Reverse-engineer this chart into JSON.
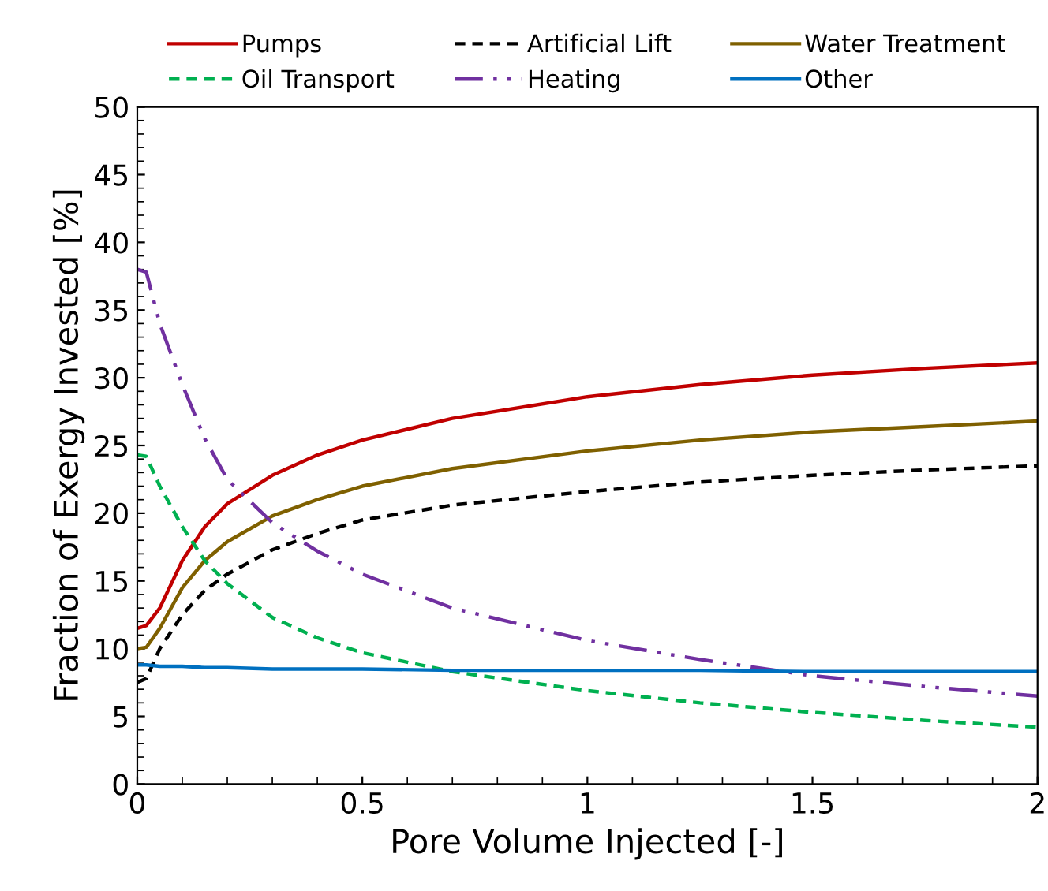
{
  "chart_data": {
    "type": "line",
    "xlabel": "Pore Volume Injected [-]",
    "ylabel": "Fraction of Exergy Invested [%]",
    "x": [
      0,
      0.02,
      0.05,
      0.1,
      0.15,
      0.2,
      0.3,
      0.4,
      0.5,
      0.7,
      1.0,
      1.25,
      1.5,
      1.75,
      2.0
    ],
    "series": [
      {
        "name": "Pumps",
        "color": "#c00000",
        "line_style": "solid",
        "values": [
          11.5,
          11.7,
          13,
          16.5,
          19,
          20.7,
          22.8,
          24.3,
          25.4,
          27,
          28.6,
          29.5,
          30.2,
          30.7,
          31.1
        ]
      },
      {
        "name": "Artificial Lift",
        "color": "#000000",
        "line_style": "dashed",
        "values": [
          7.5,
          7.8,
          10,
          12.5,
          14.3,
          15.5,
          17.3,
          18.5,
          19.5,
          20.6,
          21.6,
          22.3,
          22.8,
          23.2,
          23.5
        ]
      },
      {
        "name": "Water Treatment",
        "color": "#7f6000",
        "line_style": "solid",
        "values": [
          10,
          10.1,
          11.5,
          14.5,
          16.5,
          17.9,
          19.8,
          21,
          22,
          23.3,
          24.6,
          25.4,
          26,
          26.4,
          26.8
        ]
      },
      {
        "name": "Oil Transport",
        "color": "#00b050",
        "line_style": "dashed",
        "values": [
          24.3,
          24.2,
          22,
          19,
          16.5,
          14.8,
          12.3,
          10.8,
          9.7,
          8.3,
          6.9,
          6,
          5.3,
          4.7,
          4.2
        ]
      },
      {
        "name": "Heating",
        "color": "#7030a0",
        "line_style": "dashdot",
        "values": [
          38,
          37.8,
          34,
          29.5,
          25.5,
          22.5,
          19.3,
          17.2,
          15.5,
          13,
          10.6,
          9.2,
          8,
          7.2,
          6.5
        ]
      },
      {
        "name": "Other",
        "color": "#0070c0",
        "line_style": "solid",
        "values": [
          8.8,
          8.8,
          8.7,
          8.7,
          8.6,
          8.6,
          8.5,
          8.5,
          8.5,
          8.4,
          8.4,
          8.4,
          8.3,
          8.3,
          8.3
        ]
      }
    ],
    "xlim": [
      0,
      2
    ],
    "xticks": [
      0,
      0.5,
      1,
      1.5,
      2
    ],
    "ylim": [
      0,
      50
    ],
    "yticks": [
      0,
      5,
      10,
      15,
      20,
      25,
      30,
      35,
      40,
      45,
      50
    ],
    "grid": false,
    "legend": "top",
    "marker": "none"
  }
}
